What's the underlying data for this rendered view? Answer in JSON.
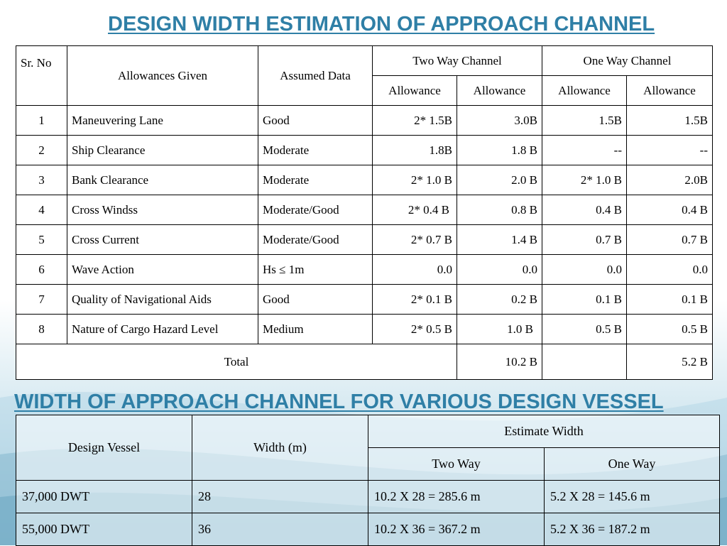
{
  "title1": "DESIGN WIDTH ESTIMATION OF APPROACH CHANNEL",
  "title2": "WIDTH OF APPROACH CHANNEL FOR VARIOUS DESIGN VESSEL",
  "table1": {
    "headers": {
      "sr_no": "Sr. No",
      "allowances_given": "Allowances Given",
      "assumed_data": "Assumed Data",
      "two_way": "Two Way Channel",
      "one_way": "One Way Channel",
      "allowance_1": "Allowance",
      "allowance_2": "Allowance",
      "allowance_3": "Allowance",
      "allowance_4": "Allowance"
    },
    "rows": [
      {
        "sr": "1",
        "allowance": "Maneuvering Lane",
        "assumed": "Good",
        "tw1": "2* 1.5B",
        "tw2": "3.0B",
        "ow1": "1.5B",
        "ow2": "1.5B"
      },
      {
        "sr": "2",
        "allowance": "Ship Clearance",
        "assumed": "Moderate",
        "tw1": "1.8B",
        "tw2": "1.8 B",
        "ow1": "--",
        "ow2": "--"
      },
      {
        "sr": "3",
        "allowance": "Bank Clearance",
        "assumed": "Moderate",
        "tw1": "2* 1.0 B",
        "tw2": "2.0 B",
        "ow1": "2* 1.0 B",
        "ow2": "2.0B"
      },
      {
        "sr": "4",
        "allowance": "Cross Windss",
        "assumed": "Moderate/Good",
        "tw1": "2* 0.4 B",
        "tw2": "0.8 B",
        "ow1": "0.4 B",
        "ow2": "0.4 B"
      },
      {
        "sr": "5",
        "allowance": "Cross Current",
        "assumed": "Moderate/Good",
        "tw1": "2* 0.7 B",
        "tw2": "1.4 B",
        "ow1": "0.7 B",
        "ow2": "0.7 B"
      },
      {
        "sr": "6",
        "allowance": "Wave Action",
        "assumed": "Hs ≤ 1m",
        "tw1": "0.0",
        "tw2": "0.0",
        "ow1": "0.0",
        "ow2": "0.0"
      },
      {
        "sr": "7",
        "allowance": "Quality of Navigational Aids",
        "assumed": "Good",
        "tw1": "2* 0.1 B",
        "tw2": "0.2 B",
        "ow1": "0.1 B",
        "ow2": "0.1 B"
      },
      {
        "sr": "8",
        "allowance": "Nature of Cargo Hazard Level",
        "assumed": "Medium",
        "tw1": "2* 0.5 B",
        "tw2": "1.0 B",
        "ow1": "0.5 B",
        "ow2": "0.5 B"
      }
    ],
    "total": {
      "label": "Total",
      "two_way": "10.2 B",
      "one_way_blank": "",
      "one_way": "5.2 B"
    }
  },
  "table2": {
    "headers": {
      "design_vessel": "Design Vessel",
      "width_m": "Width (m)",
      "estimate_width": "Estimate Width",
      "two_way": "Two Way",
      "one_way": "One Way"
    },
    "rows": [
      {
        "vessel": "37,000 DWT",
        "width": "28",
        "two_way": "10.2 X 28 = 285.6 m",
        "one_way": "5.2 X 28 = 145.6 m"
      },
      {
        "vessel": "55,000 DWT",
        "width": "36",
        "two_way": "10.2 X 36 = 367.2 m",
        "one_way": "5.2 X 36 = 187.2 m"
      }
    ]
  }
}
